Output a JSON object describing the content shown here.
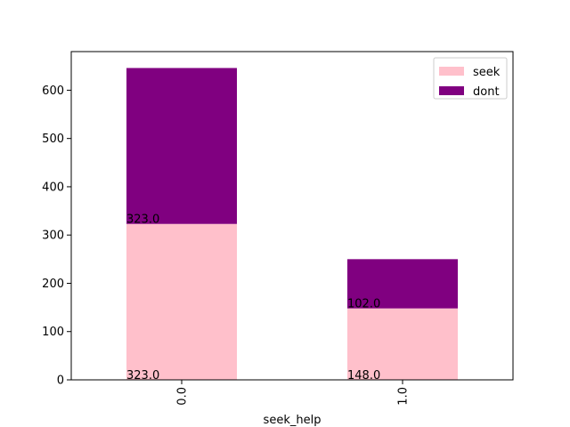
{
  "chart_data": {
    "type": "bar",
    "stacked": true,
    "categories": [
      "0.0",
      "1.0"
    ],
    "series": [
      {
        "name": "seek",
        "values": [
          323,
          148
        ],
        "color": "#ffc0cb"
      },
      {
        "name": "dont",
        "values": [
          323,
          102
        ],
        "color": "#800080"
      }
    ],
    "annotations": [
      {
        "text": "323.0",
        "category": "0.0",
        "y": 0
      },
      {
        "text": "323.0",
        "category": "0.0",
        "y": 323
      },
      {
        "text": "148.0",
        "category": "1.0",
        "y": 0
      },
      {
        "text": "102.0",
        "category": "1.0",
        "y": 148
      }
    ],
    "xlabel": "seek_help",
    "ylabel": "",
    "ylim": [
      0,
      680
    ],
    "yticks": [
      0,
      100,
      200,
      300,
      400,
      500,
      600
    ],
    "grid": false,
    "legend_position": "top-right"
  }
}
